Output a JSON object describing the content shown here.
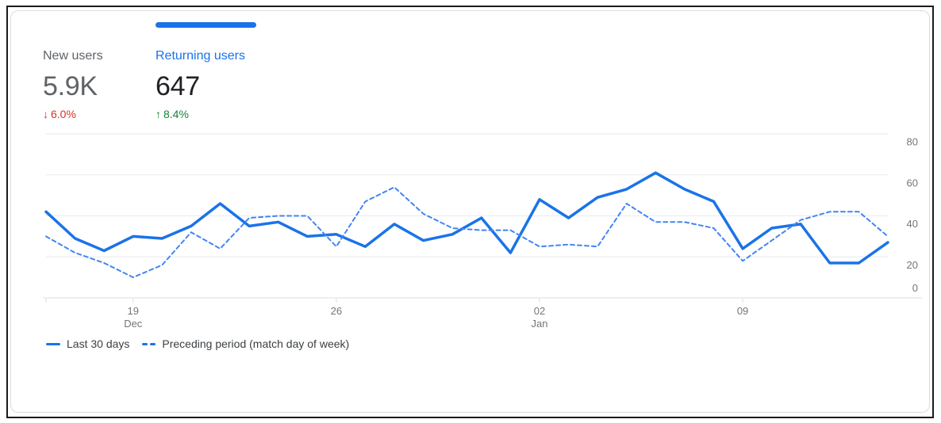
{
  "metrics": {
    "tabs": [
      {
        "label": "New users",
        "value": "5.9K",
        "delta_arrow": "↓",
        "delta_value": "6.0%",
        "delta_direction": "down",
        "selected": false
      },
      {
        "label": "Returning users",
        "value": "647",
        "delta_arrow": "↑",
        "delta_value": "8.4%",
        "delta_direction": "up",
        "selected": true
      }
    ]
  },
  "chart_data": {
    "type": "line",
    "num_points": 30,
    "ylim": [
      0,
      80
    ],
    "y_ticks": [
      0,
      20,
      40,
      60,
      80
    ],
    "grid": true,
    "legend_position": "bottom-left",
    "x_tick_indices": [
      0,
      3,
      10,
      17,
      24
    ],
    "x_labels": [
      {
        "index": 3,
        "day": "19",
        "month": "Dec"
      },
      {
        "index": 10,
        "day": "26",
        "month": ""
      },
      {
        "index": 17,
        "day": "02",
        "month": "Jan"
      },
      {
        "index": 24,
        "day": "09",
        "month": ""
      }
    ],
    "series": [
      {
        "name": "Last 30 days",
        "style": "solid",
        "color": "#1a73e8",
        "values": [
          42,
          29,
          23,
          30,
          29,
          35,
          46,
          35,
          37,
          30,
          31,
          25,
          36,
          28,
          31,
          39,
          22,
          48,
          39,
          49,
          53,
          61,
          53,
          47,
          24,
          34,
          36,
          17,
          17,
          27
        ]
      },
      {
        "name": "Preceding period (match day of week)",
        "style": "dashed",
        "color": "#4285f4",
        "values": [
          30,
          22,
          17,
          10,
          16,
          32,
          24,
          39,
          40,
          40,
          25,
          47,
          54,
          41,
          34,
          33,
          33,
          25,
          26,
          25,
          46,
          37,
          37,
          34,
          18,
          28,
          38,
          42,
          42,
          30
        ]
      }
    ]
  },
  "colors": {
    "accent_blue": "#1a73e8",
    "dashed_blue": "#4285f4",
    "delta_negative": "#d93025",
    "delta_positive": "#188038",
    "axis_text": "#757575",
    "gridline": "#e8eaed",
    "axis_line": "#dadce0"
  }
}
